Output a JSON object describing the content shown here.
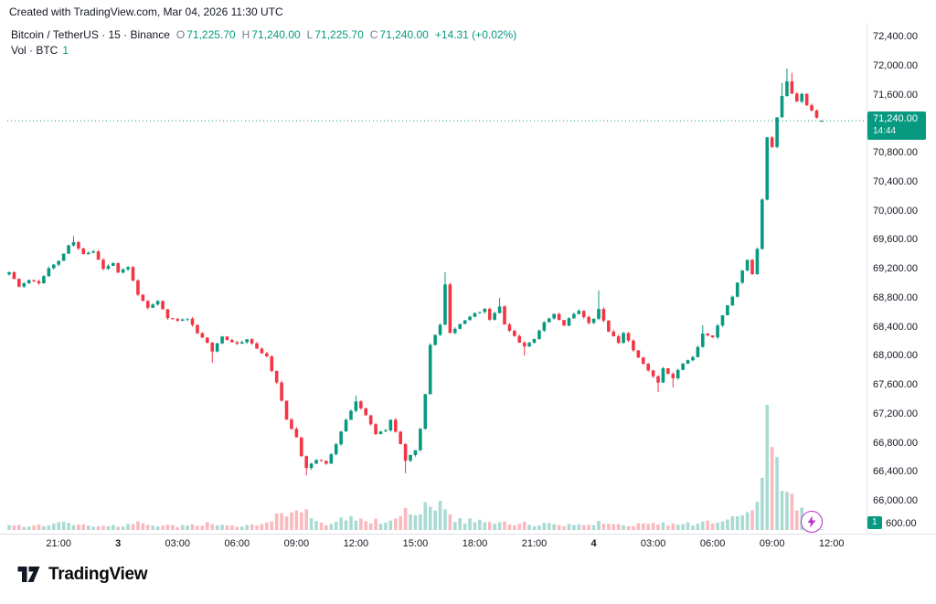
{
  "attribution": "Created with TradingView.com, Mar 04, 2026 11:30 UTC",
  "legend": {
    "series_title": "Bitcoin / TetherUS · 15 · Binance",
    "ohlc": [
      {
        "k": "O",
        "v": "71,225.70"
      },
      {
        "k": "H",
        "v": "71,240.00"
      },
      {
        "k": "L",
        "v": "71,225.70"
      },
      {
        "k": "C",
        "v": "71,240.00"
      }
    ],
    "change": "+14.31 (+0.02%)",
    "vol_label": "Vol · BTC",
    "vol_value": "1"
  },
  "price_line": {
    "label": "71,240.00",
    "countdown": "14:44",
    "value": 71240
  },
  "volume_axis": {
    "current": "1",
    "tick": "600.00",
    "tick_value": 600
  },
  "footer": {
    "brand": "TradingView"
  },
  "icons": {
    "flash": "lightning-bolt",
    "logo": "tradingview-17-mark"
  },
  "colors": {
    "up": "#089981",
    "down": "#F23645",
    "volUp": "rgba(8,153,129,0.35)",
    "volDown": "rgba(242,54,69,0.35)",
    "priceLine": "#089981",
    "axisLine": "#e0e3eb",
    "axisText": "#131722",
    "accentPurple": "#bb2fd0"
  },
  "chart_data": {
    "type": "candlestick",
    "symbol": "Bitcoin / TetherUS",
    "interval": "15",
    "exchange": "Binance",
    "legend_ohlc": {
      "o": 71225.7,
      "h": 71240.0,
      "l": 71225.7,
      "c": 71240.0,
      "change_abs": 14.31,
      "change_pct": 0.02
    },
    "last_candle": {
      "o": 71225.7,
      "h": 71240.0,
      "l": 71225.7,
      "c": 71240.0
    },
    "bar_count": 165,
    "seed": 11,
    "ylim": [
      66000,
      72400
    ],
    "grid": false,
    "price_ticks": [
      {
        "v": 72400,
        "t": "72,400.00"
      },
      {
        "v": 72000,
        "t": "72,000.00"
      },
      {
        "v": 71600,
        "t": "71,600.00"
      },
      {
        "v": 70800,
        "t": "70,800.00"
      },
      {
        "v": 70400,
        "t": "70,400.00"
      },
      {
        "v": 70000,
        "t": "70,000.00"
      },
      {
        "v": 69600,
        "t": "69,600.00"
      },
      {
        "v": 69200,
        "t": "69,200.00"
      },
      {
        "v": 68800,
        "t": "68,800.00"
      },
      {
        "v": 68400,
        "t": "68,400.00"
      },
      {
        "v": 68000,
        "t": "68,000.00"
      },
      {
        "v": 67600,
        "t": "67,600.00"
      },
      {
        "v": 67200,
        "t": "67,200.00"
      },
      {
        "v": 66800,
        "t": "66,800.00"
      },
      {
        "v": 66400,
        "t": "66,400.00"
      },
      {
        "v": 66000,
        "t": "66,000.00"
      }
    ],
    "time_ticks": [
      {
        "i": 10,
        "t": "21:00"
      },
      {
        "i": 22,
        "t": "3",
        "bold": true
      },
      {
        "i": 34,
        "t": "03:00"
      },
      {
        "i": 46,
        "t": "06:00"
      },
      {
        "i": 58,
        "t": "09:00"
      },
      {
        "i": 70,
        "t": "12:00"
      },
      {
        "i": 82,
        "t": "15:00"
      },
      {
        "i": 94,
        "t": "18:00"
      },
      {
        "i": 106,
        "t": "21:00"
      },
      {
        "i": 118,
        "t": "4",
        "bold": true
      },
      {
        "i": 130,
        "t": "03:00"
      },
      {
        "i": 142,
        "t": "06:00"
      },
      {
        "i": 154,
        "t": "09:00"
      },
      {
        "i": 166,
        "t": "12:00"
      }
    ],
    "close_waypoints": [
      [
        0,
        69150
      ],
      [
        2,
        68950
      ],
      [
        4,
        69050
      ],
      [
        6,
        69000
      ],
      [
        8,
        69200
      ],
      [
        10,
        69300
      ],
      [
        12,
        69520
      ],
      [
        13,
        69560
      ],
      [
        15,
        69400
      ],
      [
        17,
        69440
      ],
      [
        19,
        69200
      ],
      [
        21,
        69280
      ],
      [
        22,
        69150
      ],
      [
        24,
        69220
      ],
      [
        26,
        68850
      ],
      [
        28,
        68650
      ],
      [
        30,
        68750
      ],
      [
        32,
        68520
      ],
      [
        34,
        68480
      ],
      [
        36,
        68520
      ],
      [
        38,
        68320
      ],
      [
        40,
        68180
      ],
      [
        41,
        68060
      ],
      [
        43,
        68260
      ],
      [
        46,
        68160
      ],
      [
        48,
        68230
      ],
      [
        50,
        68100
      ],
      [
        52,
        67980
      ],
      [
        54,
        67620
      ],
      [
        56,
        67120
      ],
      [
        58,
        66880
      ],
      [
        59,
        66620
      ],
      [
        60,
        66460
      ],
      [
        62,
        66560
      ],
      [
        64,
        66520
      ],
      [
        66,
        66780
      ],
      [
        68,
        67120
      ],
      [
        70,
        67360
      ],
      [
        72,
        67180
      ],
      [
        74,
        66920
      ],
      [
        76,
        66980
      ],
      [
        77,
        67120
      ],
      [
        79,
        66780
      ],
      [
        80,
        66560
      ],
      [
        82,
        66700
      ],
      [
        83,
        67000
      ],
      [
        84,
        67480
      ],
      [
        85,
        68150
      ],
      [
        87,
        68420
      ],
      [
        88,
        68980
      ],
      [
        89,
        68320
      ],
      [
        91,
        68440
      ],
      [
        93,
        68540
      ],
      [
        94,
        68580
      ],
      [
        96,
        68640
      ],
      [
        97,
        68500
      ],
      [
        99,
        68680
      ],
      [
        100,
        68440
      ],
      [
        102,
        68260
      ],
      [
        104,
        68120
      ],
      [
        106,
        68240
      ],
      [
        108,
        68460
      ],
      [
        110,
        68580
      ],
      [
        112,
        68420
      ],
      [
        113,
        68520
      ],
      [
        115,
        68620
      ],
      [
        117,
        68460
      ],
      [
        118,
        68520
      ],
      [
        119,
        68640
      ],
      [
        121,
        68340
      ],
      [
        123,
        68180
      ],
      [
        124,
        68320
      ],
      [
        126,
        68080
      ],
      [
        128,
        67880
      ],
      [
        130,
        67720
      ],
      [
        131,
        67640
      ],
      [
        132,
        67820
      ],
      [
        134,
        67700
      ],
      [
        136,
        67900
      ],
      [
        138,
        67980
      ],
      [
        139,
        68120
      ],
      [
        140,
        68300
      ],
      [
        142,
        68260
      ],
      [
        143,
        68420
      ],
      [
        145,
        68700
      ],
      [
        146,
        68820
      ],
      [
        148,
        69180
      ],
      [
        149,
        69320
      ],
      [
        150,
        69120
      ],
      [
        151,
        69480
      ],
      [
        152,
        70150
      ],
      [
        153,
        71020
      ],
      [
        154,
        70880
      ],
      [
        155,
        71280
      ],
      [
        156,
        71580
      ],
      [
        157,
        71780
      ],
      [
        158,
        71620
      ],
      [
        159,
        71500
      ],
      [
        160,
        71620
      ],
      [
        161,
        71460
      ],
      [
        162,
        71380
      ],
      [
        163,
        71290
      ],
      [
        164,
        71240
      ]
    ],
    "spike_highs": [
      [
        13,
        69650
      ],
      [
        70,
        67450
      ],
      [
        88,
        69150
      ],
      [
        99,
        68800
      ],
      [
        119,
        68900
      ],
      [
        140,
        68420
      ],
      [
        156,
        71760
      ],
      [
        157,
        71960
      ],
      [
        158,
        71900
      ]
    ],
    "spike_lows": [
      [
        41,
        67900
      ],
      [
        60,
        66350
      ],
      [
        80,
        66380
      ],
      [
        104,
        68000
      ],
      [
        131,
        67500
      ],
      [
        134,
        67560
      ]
    ],
    "volume_waypoints": [
      [
        0,
        420
      ],
      [
        4,
        330
      ],
      [
        8,
        520
      ],
      [
        12,
        650
      ],
      [
        16,
        380
      ],
      [
        20,
        350
      ],
      [
        24,
        430
      ],
      [
        26,
        600
      ],
      [
        30,
        380
      ],
      [
        34,
        360
      ],
      [
        38,
        400
      ],
      [
        40,
        620
      ],
      [
        44,
        350
      ],
      [
        48,
        420
      ],
      [
        52,
        550
      ],
      [
        53,
        900
      ],
      [
        54,
        1500
      ],
      [
        56,
        1600
      ],
      [
        58,
        1450
      ],
      [
        59,
        1700
      ],
      [
        60,
        1500
      ],
      [
        62,
        800
      ],
      [
        64,
        600
      ],
      [
        66,
        700
      ],
      [
        68,
        1100
      ],
      [
        70,
        900
      ],
      [
        72,
        700
      ],
      [
        74,
        800
      ],
      [
        76,
        600
      ],
      [
        79,
        1000
      ],
      [
        80,
        1800
      ],
      [
        82,
        1400
      ],
      [
        84,
        2000
      ],
      [
        85,
        2300
      ],
      [
        86,
        1700
      ],
      [
        88,
        2400
      ],
      [
        89,
        1800
      ],
      [
        90,
        1000
      ],
      [
        92,
        800
      ],
      [
        94,
        900
      ],
      [
        96,
        700
      ],
      [
        98,
        600
      ],
      [
        100,
        700
      ],
      [
        102,
        500
      ],
      [
        104,
        600
      ],
      [
        106,
        450
      ],
      [
        108,
        500
      ],
      [
        110,
        600
      ],
      [
        112,
        450
      ],
      [
        114,
        400
      ],
      [
        116,
        500
      ],
      [
        118,
        600
      ],
      [
        119,
        800
      ],
      [
        120,
        500
      ],
      [
        122,
        600
      ],
      [
        124,
        450
      ],
      [
        126,
        400
      ],
      [
        128,
        600
      ],
      [
        130,
        800
      ],
      [
        132,
        600
      ],
      [
        134,
        500
      ],
      [
        136,
        600
      ],
      [
        138,
        500
      ],
      [
        140,
        700
      ],
      [
        142,
        600
      ],
      [
        144,
        800
      ],
      [
        146,
        1000
      ],
      [
        148,
        1600
      ],
      [
        150,
        1400
      ],
      [
        151,
        2200
      ],
      [
        152,
        4200
      ],
      [
        153,
        10200
      ],
      [
        154,
        6800
      ],
      [
        155,
        5600
      ],
      [
        156,
        4400
      ],
      [
        157,
        3600
      ],
      [
        158,
        2800
      ],
      [
        159,
        2200
      ],
      [
        160,
        1800
      ],
      [
        161,
        1500
      ],
      [
        162,
        1300
      ],
      [
        163,
        900
      ],
      [
        164,
        1
      ]
    ],
    "last_volume": 1
  }
}
